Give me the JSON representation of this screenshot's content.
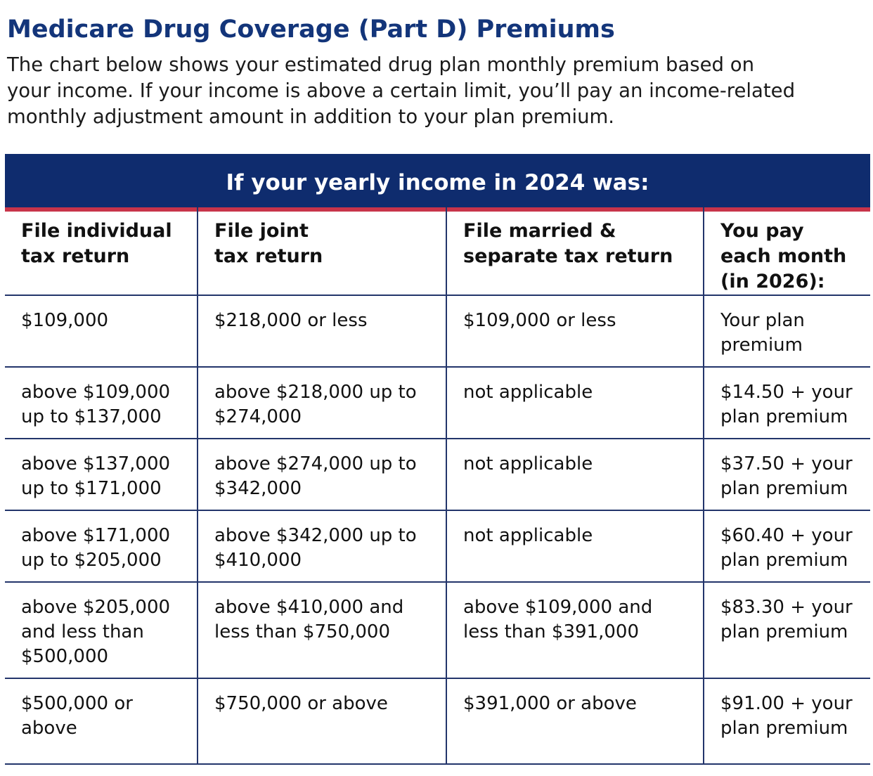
{
  "title": "Medicare Drug Coverage (Part D) Premiums",
  "intro_lines": [
    "The chart below shows your estimated drug plan monthly premium based on",
    "your income. If your income is above a certain limit, you’ll pay an income-related",
    "monthly adjustment amount in addition to your plan premium."
  ],
  "banner": "If your yearly income in 2024 was:",
  "columns": [
    [
      "File individual",
      "tax return"
    ],
    [
      "File joint",
      "tax return"
    ],
    [
      "File married &",
      "separate tax return"
    ],
    [
      "You pay",
      "each month",
      "(in 2026):"
    ]
  ],
  "rows": [
    [
      [
        "$109,000"
      ],
      [
        "$218,000 or less"
      ],
      [
        "$109,000 or less"
      ],
      [
        "Your plan",
        "premium"
      ]
    ],
    [
      [
        "above $109,000",
        "up to $137,000"
      ],
      [
        "above $218,000 up to",
        "$274,000"
      ],
      [
        "not applicable"
      ],
      [
        "$14.50 + your",
        "plan premium"
      ]
    ],
    [
      [
        "above $137,000",
        "up to $171,000"
      ],
      [
        "above $274,000 up to",
        "$342,000"
      ],
      [
        "not applicable"
      ],
      [
        "$37.50 + your",
        "plan premium"
      ]
    ],
    [
      [
        "above $171,000",
        "up to $205,000"
      ],
      [
        "above $342,000 up to",
        "$410,000"
      ],
      [
        "not applicable"
      ],
      [
        "$60.40 + your",
        "plan premium"
      ]
    ],
    [
      [
        "above $205,000",
        "and less than",
        "$500,000"
      ],
      [
        "above $410,000 and",
        "less than $750,000"
      ],
      [
        "above $109,000 and",
        "less than $391,000"
      ],
      [
        "$83.30 + your",
        "plan premium"
      ]
    ],
    [
      [
        "$500,000 or",
        "above"
      ],
      [
        "$750,000 or above"
      ],
      [
        "$391,000 or above"
      ],
      [
        "$91.00 + your",
        "plan premium"
      ]
    ]
  ],
  "colors": {
    "title": "#13357a",
    "banner_bg": "#0f2c6e",
    "banner_accent": "#c8344a",
    "rule": "#23356b"
  }
}
